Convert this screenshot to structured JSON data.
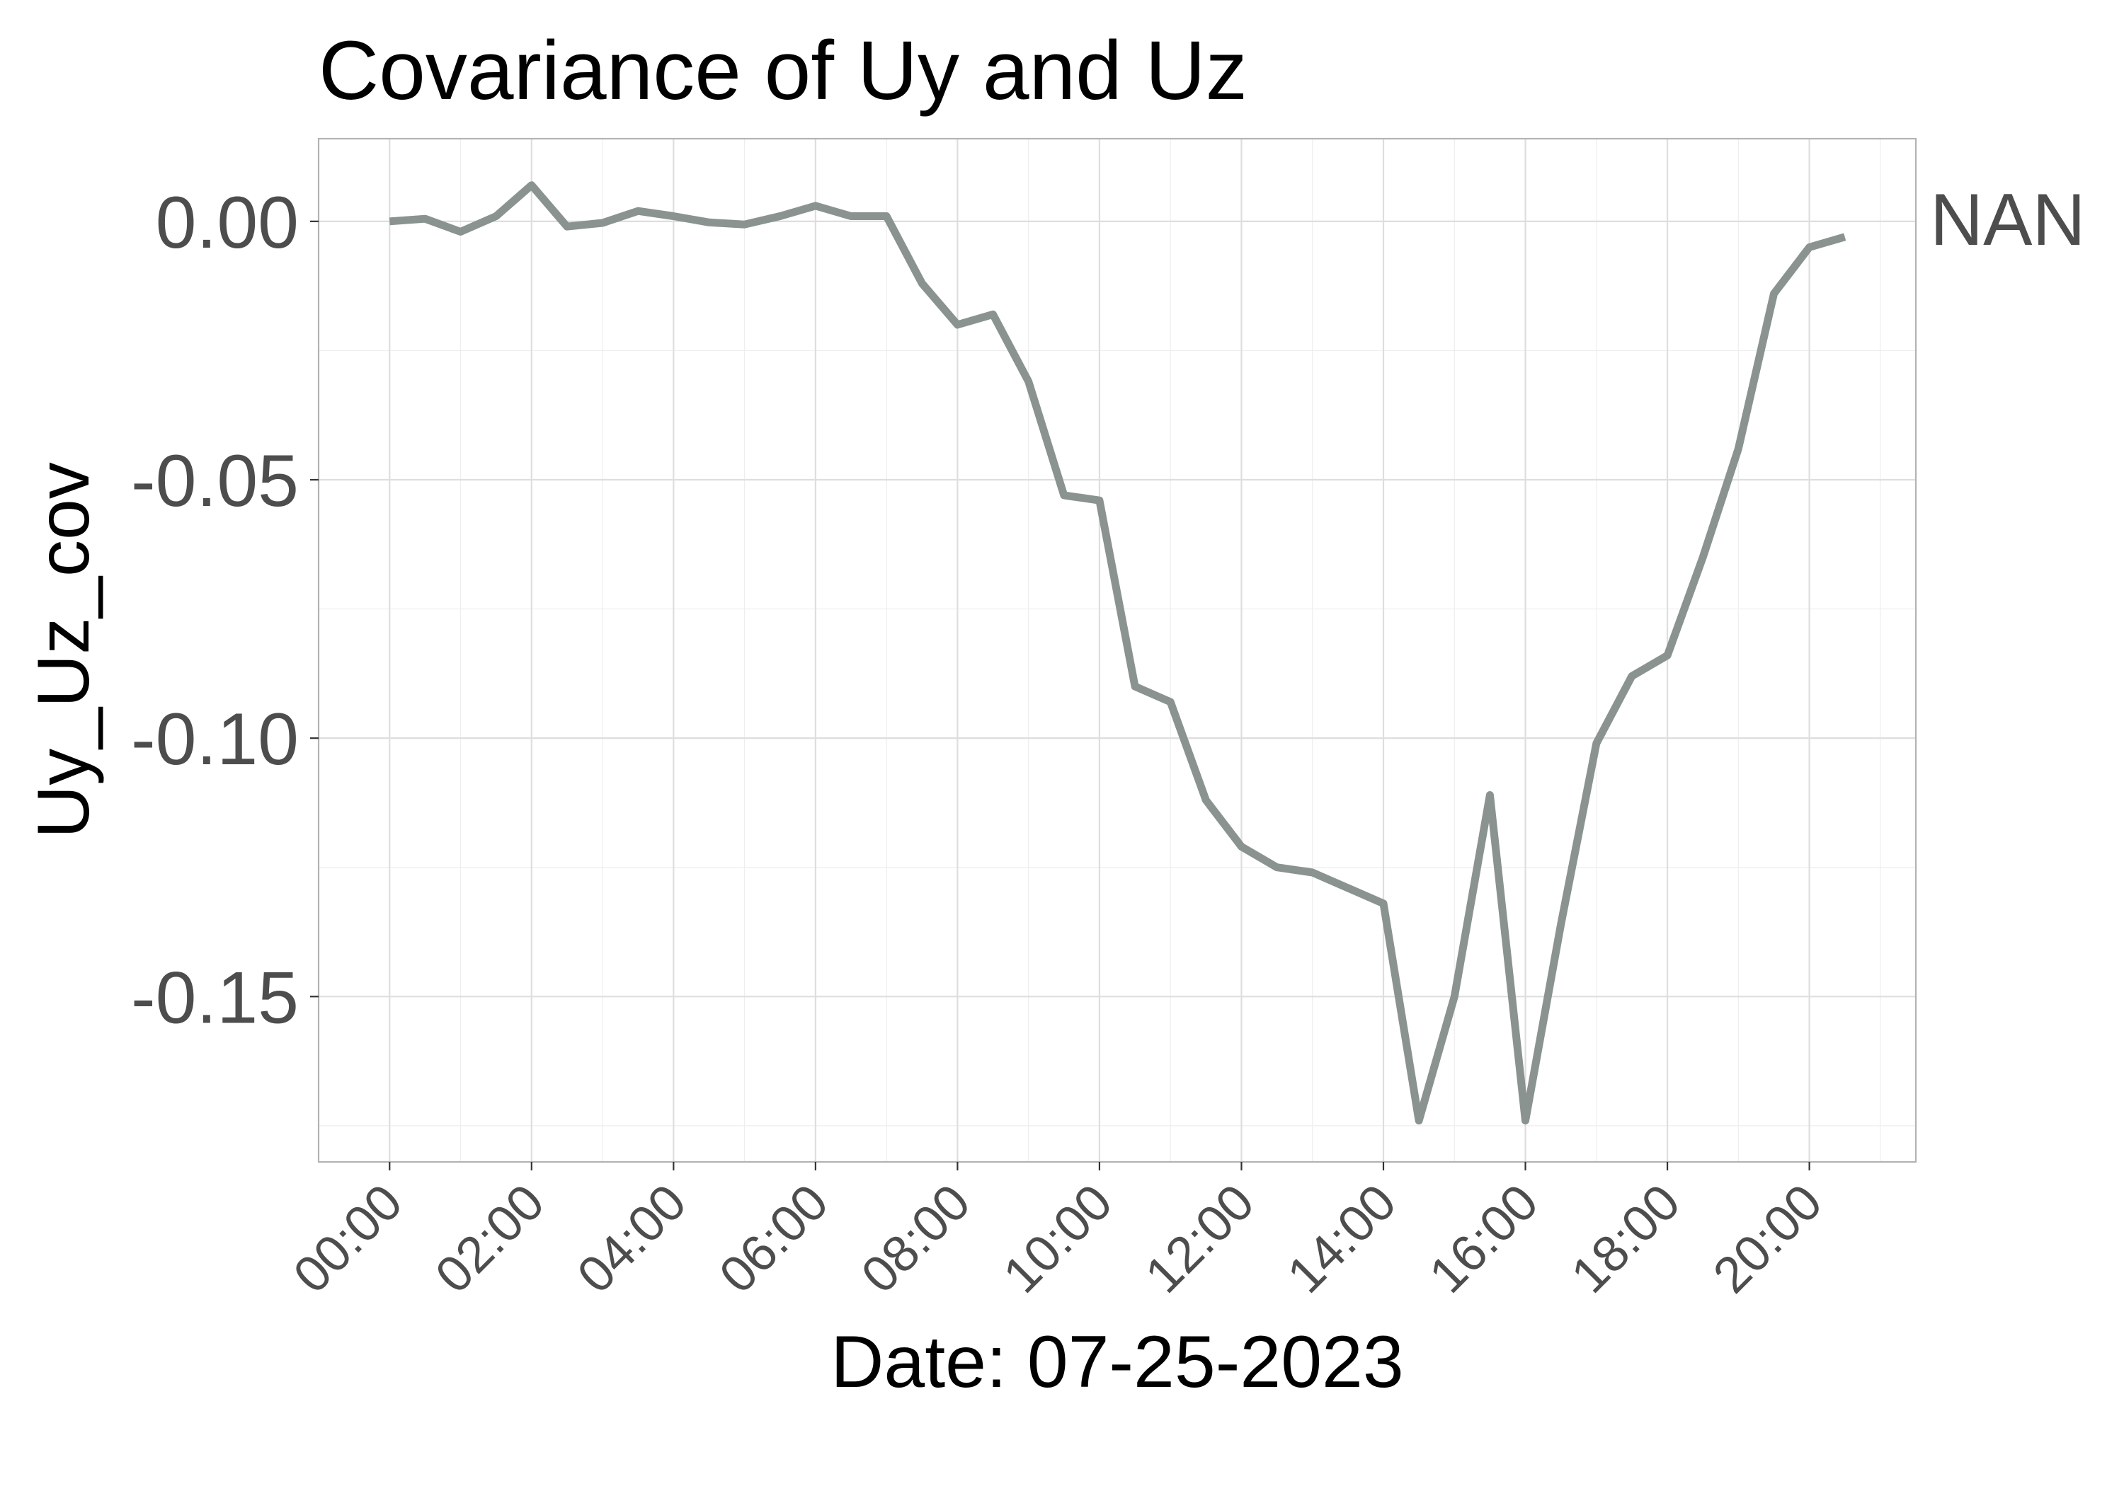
{
  "chart_data": {
    "type": "line",
    "title": "Covariance of Uy and Uz",
    "xlabel": "Date: 07-25-2023",
    "ylabel": "Uy_Uz_cov",
    "x_ticks": [
      "00:00",
      "02:00",
      "04:00",
      "06:00",
      "08:00",
      "10:00",
      "12:00",
      "14:00",
      "16:00",
      "18:00",
      "20:00"
    ],
    "y_ticks": [
      "0.00",
      "-0.05",
      "-0.10",
      "-0.15"
    ],
    "xlim": [
      "-01:00",
      "21:30"
    ],
    "ylim": [
      -0.182,
      0.016
    ],
    "grid": true,
    "legend_position": "right",
    "series": [
      {
        "name": "NAN",
        "color": "#8a9390",
        "x": [
          "00:00",
          "00:30",
          "01:00",
          "01:30",
          "02:00",
          "02:30",
          "03:00",
          "03:30",
          "04:00",
          "04:30",
          "05:00",
          "05:30",
          "06:00",
          "06:30",
          "07:00",
          "07:30",
          "08:00",
          "08:30",
          "09:00",
          "09:30",
          "10:00",
          "10:30",
          "11:00",
          "11:30",
          "12:00",
          "12:30",
          "13:00",
          "13:30",
          "14:00",
          "14:30",
          "15:00",
          "15:30",
          "16:00",
          "16:30",
          "17:00",
          "17:30",
          "18:00",
          "18:30",
          "19:00",
          "19:30",
          "20:00",
          "20:30"
        ],
        "values": [
          0.0,
          0.0005,
          -0.002,
          0.001,
          0.007,
          -0.001,
          -0.0003,
          0.002,
          0.001,
          -0.0002,
          -0.0006,
          0.001,
          0.003,
          0.001,
          0.001,
          -0.012,
          -0.02,
          -0.018,
          -0.031,
          -0.053,
          -0.054,
          -0.09,
          -0.093,
          -0.112,
          -0.121,
          -0.125,
          -0.126,
          -0.129,
          -0.132,
          -0.174,
          -0.15,
          -0.111,
          -0.174,
          -0.136,
          -0.101,
          -0.088,
          -0.084,
          -0.065,
          -0.044,
          -0.014,
          -0.005,
          -0.003
        ]
      }
    ]
  }
}
